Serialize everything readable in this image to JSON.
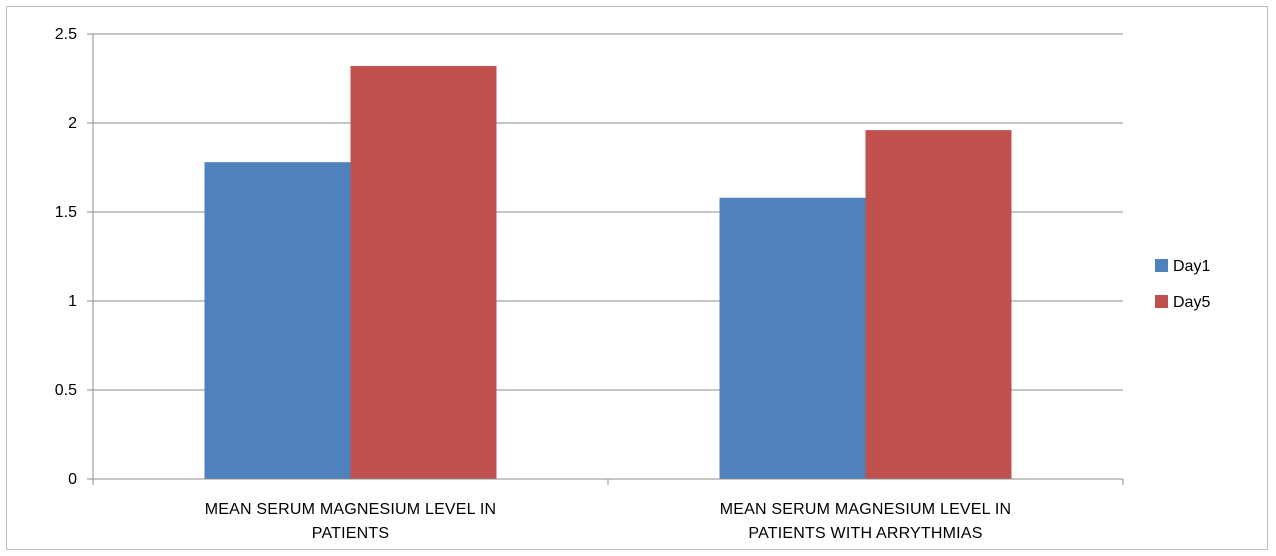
{
  "chart_data": {
    "type": "bar",
    "title": "",
    "xlabel": "",
    "ylabel": "",
    "categories": [
      [
        "MEAN SERUM MAGNESIUM LEVEL IN",
        "PATIENTS"
      ],
      [
        "MEAN SERUM MAGNESIUM LEVEL IN",
        "PATIENTS WITH ARRYTHMIAS"
      ]
    ],
    "series": [
      {
        "name": "Day1",
        "color": "#4F81BD",
        "values": [
          1.78,
          1.58
        ]
      },
      {
        "name": "Day5",
        "color": "#C0504D",
        "values": [
          2.32,
          1.96
        ]
      }
    ],
    "ylim": [
      0,
      2.5
    ],
    "yticks": [
      "0",
      "0.5",
      "1",
      "1.5",
      "2",
      "2.5"
    ],
    "grid": true,
    "legend_position": "right"
  }
}
